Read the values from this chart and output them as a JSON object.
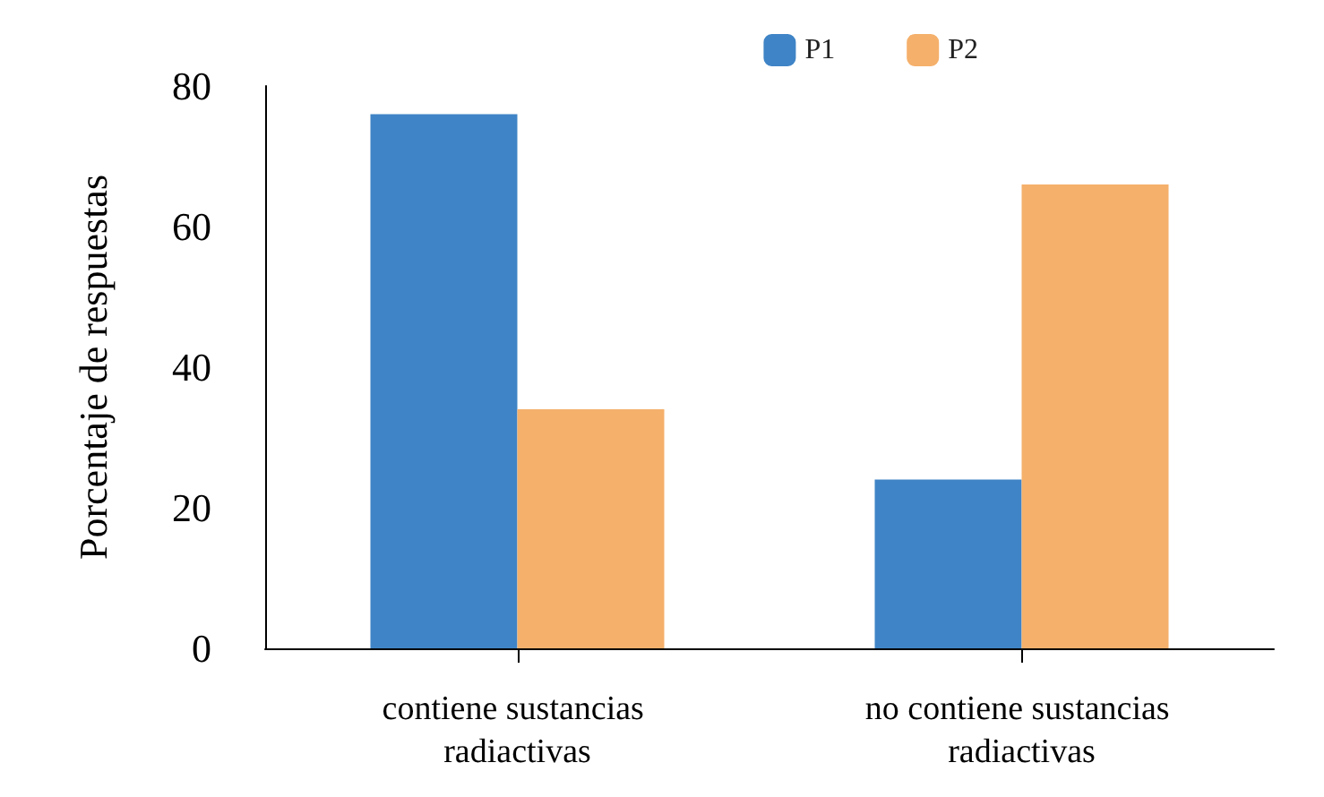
{
  "chart_data": {
    "type": "bar",
    "ylabel": "Porcentaje de respuestas",
    "categories": [
      "contiene sustancias radiactivas",
      "no contiene sustancias radiactivas"
    ],
    "series": [
      {
        "name": "P1",
        "color": "#3f84c6",
        "values": [
          76,
          24
        ]
      },
      {
        "name": "P2",
        "color": "#f5b06b",
        "values": [
          34,
          66
        ]
      }
    ],
    "ylim": [
      0,
      80
    ],
    "yticks": [
      0,
      20,
      40,
      60,
      80
    ],
    "grid": false,
    "legend": "top right"
  }
}
